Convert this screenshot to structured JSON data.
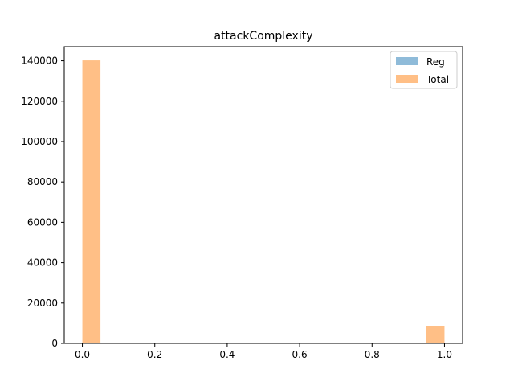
{
  "chart_data": {
    "type": "bar",
    "title": "attackComplexity",
    "xlabel": "",
    "ylabel": "",
    "xlim": [
      -0.05,
      1.05
    ],
    "ylim": [
      0,
      147000
    ],
    "xticks": [
      0.0,
      0.2,
      0.4,
      0.6,
      0.8,
      1.0
    ],
    "xtick_labels": [
      "0.0",
      "0.2",
      "0.4",
      "0.6",
      "0.8",
      "1.0"
    ],
    "yticks": [
      0,
      20000,
      40000,
      60000,
      80000,
      100000,
      120000,
      140000
    ],
    "ytick_labels": [
      "0",
      "20000",
      "40000",
      "60000",
      "80000",
      "100000",
      "120000",
      "140000"
    ],
    "legend_position": "top-right",
    "grid": false,
    "bins": [
      {
        "x0": 0.0,
        "x1": 0.05
      },
      {
        "x0": 0.95,
        "x1": 1.0
      }
    ],
    "series": [
      {
        "name": "Reg",
        "color": "#1f77b4",
        "opacity": 0.5,
        "values": [
          0,
          0
        ]
      },
      {
        "name": "Total",
        "color": "#ff7f0e",
        "opacity": 0.5,
        "values": [
          140200,
          8500
        ]
      }
    ]
  }
}
